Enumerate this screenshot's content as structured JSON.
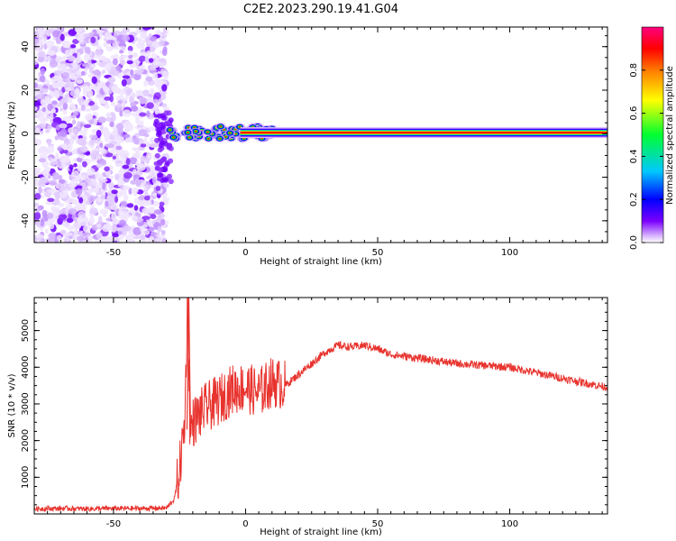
{
  "title": "C2E2.2023.290.19.41.G04",
  "chart_data": [
    {
      "type": "heatmap",
      "xlabel": "Height of straight line (km)",
      "ylabel": "Frequency (Hz)",
      "xlim": [
        -80,
        137
      ],
      "ylim": [
        -50,
        49
      ],
      "x_ticks": [
        -50,
        0,
        50,
        100
      ],
      "y_ticks": [
        -40,
        -20,
        0,
        20,
        40
      ],
      "noise_region_x": [
        -80,
        -30
      ],
      "signal_frequency": 0.5,
      "wavering_region_x": [
        -30,
        10
      ],
      "colorbar": {
        "label": "Normalized spectral amplitude",
        "ticks": [
          "0.0",
          "0.2",
          "0.4",
          "0.6",
          "0.8"
        ],
        "range": [
          0,
          1
        ],
        "colors": [
          "#ffffff",
          "#6000ff",
          "#0000ff",
          "#00c0ff",
          "#00ff30",
          "#ffff00",
          "#ff8000",
          "#ff0000",
          "#ff0080"
        ]
      }
    },
    {
      "type": "line",
      "xlabel": "Height of straight line (km)",
      "ylabel": "SNR (10 * v/v)",
      "xlim": [
        -80,
        137
      ],
      "ylim": [
        0,
        5900
      ],
      "x_ticks": [
        -50,
        0,
        50,
        100
      ],
      "y_ticks": [
        1000,
        2000,
        3000,
        4000,
        5000
      ],
      "color": "#e8332e",
      "x": [
        -80,
        -70,
        -60,
        -50,
        -40,
        -30,
        -27,
        -25,
        -23,
        -22,
        -21,
        -20,
        -15,
        -10,
        -5,
        0,
        5,
        10,
        15,
        20,
        25,
        30,
        35,
        40,
        45,
        50,
        55,
        60,
        70,
        80,
        90,
        100,
        110,
        120,
        130,
        137
      ],
      "values": [
        140,
        150,
        140,
        150,
        150,
        160,
        400,
        1200,
        2500,
        5900,
        2200,
        2500,
        2900,
        3100,
        3400,
        3450,
        3300,
        3600,
        3500,
        3800,
        4100,
        4400,
        4600,
        4550,
        4600,
        4500,
        4350,
        4300,
        4200,
        4100,
        4050,
        4000,
        3850,
        3700,
        3550,
        3450
      ]
    }
  ]
}
